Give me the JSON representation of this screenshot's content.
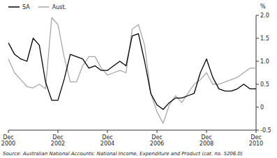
{
  "chart_data": {
    "type": "line",
    "ylabel": "%",
    "source": "Source: Australian National Accounts: National Income, Expenditure and Product (cat. no. 5206.0)",
    "categories": [
      "Dec\n2000",
      null,
      null,
      null,
      null,
      null,
      null,
      null,
      "Dec\n2002",
      null,
      null,
      null,
      null,
      null,
      null,
      null,
      "Dec\n2004",
      null,
      null,
      null,
      null,
      null,
      null,
      null,
      "Dec\n2006",
      null,
      null,
      null,
      null,
      null,
      null,
      null,
      "Dec\n2008",
      null,
      null,
      null,
      null,
      null,
      null,
      null,
      "Dec\n2010"
    ],
    "series": [
      {
        "name": "SA",
        "color": "#000000",
        "values": [
          1.4,
          1.15,
          1.05,
          1.0,
          1.5,
          1.35,
          0.55,
          0.15,
          0.15,
          0.6,
          1.15,
          1.1,
          1.05,
          0.85,
          0.9,
          0.8,
          0.8,
          0.9,
          1.0,
          0.9,
          1.55,
          1.6,
          1.0,
          0.3,
          0.05,
          -0.05,
          0.1,
          0.2,
          0.2,
          0.25,
          0.3,
          0.75,
          1.05,
          0.65,
          0.4,
          0.35,
          0.35,
          0.4,
          0.5,
          0.4,
          0.4
        ]
      },
      {
        "name": "Aust.",
        "color": "#a8a8a8",
        "values": [
          1.05,
          0.75,
          0.6,
          0.45,
          0.42,
          0.5,
          0.4,
          1.95,
          1.8,
          1.1,
          0.55,
          0.55,
          0.9,
          1.1,
          1.1,
          0.85,
          0.7,
          0.75,
          0.8,
          0.75,
          1.7,
          1.8,
          1.35,
          0.3,
          -0.1,
          -0.35,
          0.05,
          0.25,
          0.1,
          0.3,
          0.5,
          0.6,
          0.75,
          0.5,
          0.5,
          0.55,
          0.6,
          0.65,
          0.75,
          0.85,
          0.85
        ]
      }
    ],
    "ylim": [
      -0.5,
      2.0
    ],
    "yticks": [
      -0.5,
      0,
      0.5,
      {
        "value": 1.0,
        "label": "1.0"
      },
      1.5,
      {
        "value": 2.0,
        "label": "2.0"
      }
    ],
    "grid": false,
    "legend": "top-left"
  }
}
